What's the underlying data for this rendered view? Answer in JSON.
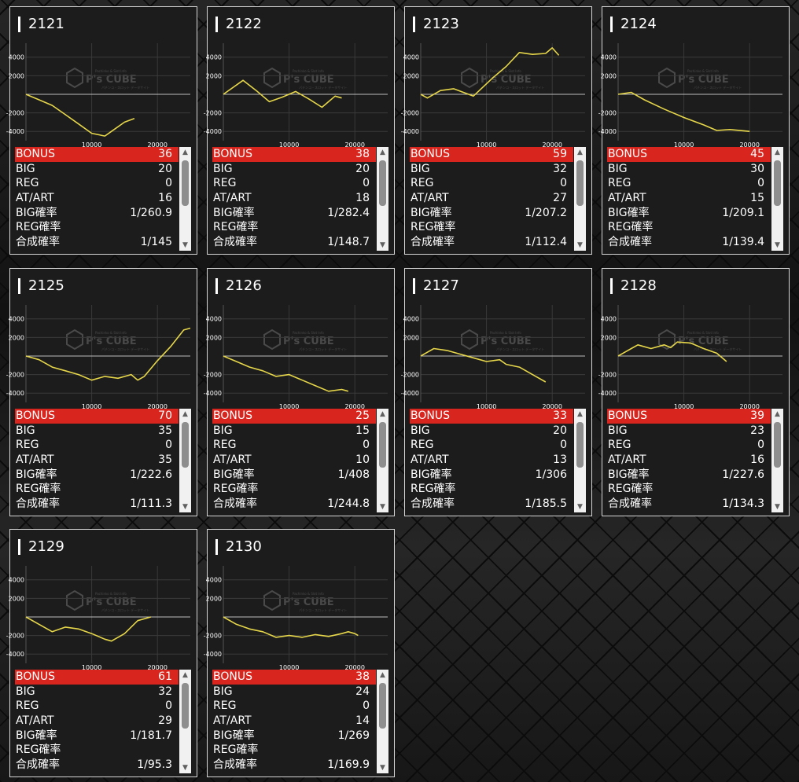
{
  "watermark": {
    "brand": "P's CUBE",
    "sub_top": "Pachinko & Slot Info",
    "sub_bottom": "パチンコ・スロット データサイト"
  },
  "labels": {
    "bonus": "BONUS",
    "big": "BIG",
    "reg": "REG",
    "at": "AT/ART",
    "big_rate": "BIG確率",
    "reg_rate": "REG確率",
    "total_rate": "合成確率"
  },
  "scroll": {
    "up": "▲",
    "down": "▼"
  },
  "axis": {
    "y": [
      "4000",
      "2000",
      "-2000",
      "-4000"
    ],
    "x": [
      "10000",
      "20000"
    ]
  },
  "colors": {
    "line": "#e6d64a",
    "bonus_bg": "#d8261e"
  },
  "machines": [
    {
      "id": "2121",
      "bonus": "36",
      "big": "20",
      "reg": "0",
      "at": "16",
      "big_rate": "1/260.9",
      "reg_rate": "",
      "total_rate": "1/145"
    },
    {
      "id": "2122",
      "bonus": "38",
      "big": "20",
      "reg": "0",
      "at": "18",
      "big_rate": "1/282.4",
      "reg_rate": "",
      "total_rate": "1/148.7"
    },
    {
      "id": "2123",
      "bonus": "59",
      "big": "32",
      "reg": "0",
      "at": "27",
      "big_rate": "1/207.2",
      "reg_rate": "",
      "total_rate": "1/112.4"
    },
    {
      "id": "2124",
      "bonus": "45",
      "big": "30",
      "reg": "0",
      "at": "15",
      "big_rate": "1/209.1",
      "reg_rate": "",
      "total_rate": "1/139.4"
    },
    {
      "id": "2125",
      "bonus": "70",
      "big": "35",
      "reg": "0",
      "at": "35",
      "big_rate": "1/222.6",
      "reg_rate": "",
      "total_rate": "1/111.3"
    },
    {
      "id": "2126",
      "bonus": "25",
      "big": "15",
      "reg": "0",
      "at": "10",
      "big_rate": "1/408",
      "reg_rate": "",
      "total_rate": "1/244.8"
    },
    {
      "id": "2127",
      "bonus": "33",
      "big": "20",
      "reg": "0",
      "at": "13",
      "big_rate": "1/306",
      "reg_rate": "",
      "total_rate": "1/185.5"
    },
    {
      "id": "2128",
      "bonus": "39",
      "big": "23",
      "reg": "0",
      "at": "16",
      "big_rate": "1/227.6",
      "reg_rate": "",
      "total_rate": "1/134.3"
    },
    {
      "id": "2129",
      "bonus": "61",
      "big": "32",
      "reg": "0",
      "at": "29",
      "big_rate": "1/181.7",
      "reg_rate": "",
      "total_rate": "1/95.3"
    },
    {
      "id": "2130",
      "bonus": "38",
      "big": "24",
      "reg": "0",
      "at": "14",
      "big_rate": "1/269",
      "reg_rate": "",
      "total_rate": "1/169.9"
    }
  ],
  "chart_data": [
    {
      "type": "line",
      "machine": "2121",
      "ylim": [
        -5000,
        5500
      ],
      "xlim": [
        0,
        25000
      ],
      "x": [
        0,
        2000,
        4000,
        6000,
        8000,
        10000,
        12000,
        13000,
        15000,
        16500
      ],
      "y": [
        0,
        -600,
        -1200,
        -2200,
        -3200,
        -4200,
        -4500,
        -4000,
        -3000,
        -2600
      ]
    },
    {
      "type": "line",
      "machine": "2122",
      "ylim": [
        -5000,
        5500
      ],
      "xlim": [
        0,
        25000
      ],
      "x": [
        0,
        3000,
        5000,
        7000,
        9000,
        11000,
        13000,
        15000,
        17000,
        18000
      ],
      "y": [
        0,
        1500,
        400,
        -800,
        -300,
        300,
        -500,
        -1400,
        -200,
        -400
      ]
    },
    {
      "type": "line",
      "machine": "2123",
      "ylim": [
        -5000,
        5500
      ],
      "xlim": [
        0,
        25000
      ],
      "x": [
        0,
        1000,
        3000,
        5000,
        8000,
        11000,
        13000,
        15000,
        17000,
        19000,
        20000,
        21000
      ],
      "y": [
        0,
        -400,
        400,
        600,
        -200,
        1800,
        3000,
        4500,
        4300,
        4400,
        5000,
        4200
      ]
    },
    {
      "type": "line",
      "machine": "2124",
      "ylim": [
        -5000,
        5500
      ],
      "xlim": [
        0,
        25000
      ],
      "x": [
        0,
        2000,
        4000,
        7000,
        10000,
        13000,
        15000,
        17000,
        20000
      ],
      "y": [
        0,
        200,
        -600,
        -1600,
        -2500,
        -3300,
        -3900,
        -3800,
        -4000
      ]
    },
    {
      "type": "line",
      "machine": "2125",
      "ylim": [
        -5000,
        5500
      ],
      "xlim": [
        0,
        25000
      ],
      "x": [
        0,
        2000,
        4000,
        6000,
        8000,
        10000,
        12000,
        14000,
        16000,
        17000,
        18000,
        20000,
        22000,
        24000,
        25000
      ],
      "y": [
        0,
        -400,
        -1200,
        -1600,
        -2000,
        -2600,
        -2200,
        -2400,
        -2000,
        -2600,
        -2200,
        -500,
        1000,
        2800,
        3000
      ]
    },
    {
      "type": "line",
      "machine": "2126",
      "ylim": [
        -5000,
        5500
      ],
      "xlim": [
        0,
        25000
      ],
      "x": [
        0,
        2000,
        4000,
        6000,
        8000,
        10000,
        12000,
        14000,
        16000,
        18000,
        19000
      ],
      "y": [
        0,
        -600,
        -1200,
        -1600,
        -2200,
        -2000,
        -2600,
        -3200,
        -3800,
        -3600,
        -3800
      ]
    },
    {
      "type": "line",
      "machine": "2127",
      "ylim": [
        -5000,
        5500
      ],
      "xlim": [
        0,
        25000
      ],
      "x": [
        0,
        1000,
        2000,
        4000,
        6000,
        8000,
        10000,
        12000,
        13000,
        15000,
        17000,
        19000
      ],
      "y": [
        0,
        400,
        800,
        600,
        200,
        -200,
        -600,
        -400,
        -900,
        -1200,
        -2000,
        -2800
      ]
    },
    {
      "type": "line",
      "machine": "2128",
      "ylim": [
        -5000,
        5500
      ],
      "xlim": [
        0,
        25000
      ],
      "x": [
        0,
        1000,
        2000,
        3000,
        5000,
        7000,
        8000,
        9000,
        11000,
        13000,
        15000,
        16500
      ],
      "y": [
        0,
        400,
        800,
        1200,
        800,
        1200,
        900,
        1500,
        1400,
        800,
        300,
        -600
      ]
    },
    {
      "type": "line",
      "machine": "2129",
      "ylim": [
        -5000,
        5500
      ],
      "xlim": [
        0,
        25000
      ],
      "x": [
        0,
        2000,
        4000,
        6000,
        8000,
        10000,
        12000,
        13000,
        15000,
        17000,
        19000
      ],
      "y": [
        0,
        -800,
        -1600,
        -1100,
        -1300,
        -1800,
        -2400,
        -2600,
        -1800,
        -400,
        0
      ]
    },
    {
      "type": "line",
      "machine": "2130",
      "ylim": [
        -5000,
        5500
      ],
      "xlim": [
        0,
        25000
      ],
      "x": [
        0,
        2000,
        4000,
        6000,
        8000,
        10000,
        12000,
        14000,
        16000,
        18000,
        19000,
        20000,
        20500
      ],
      "y": [
        0,
        -800,
        -1300,
        -1600,
        -2200,
        -2000,
        -2200,
        -1900,
        -2100,
        -1800,
        -1600,
        -1800,
        -2000
      ]
    }
  ]
}
